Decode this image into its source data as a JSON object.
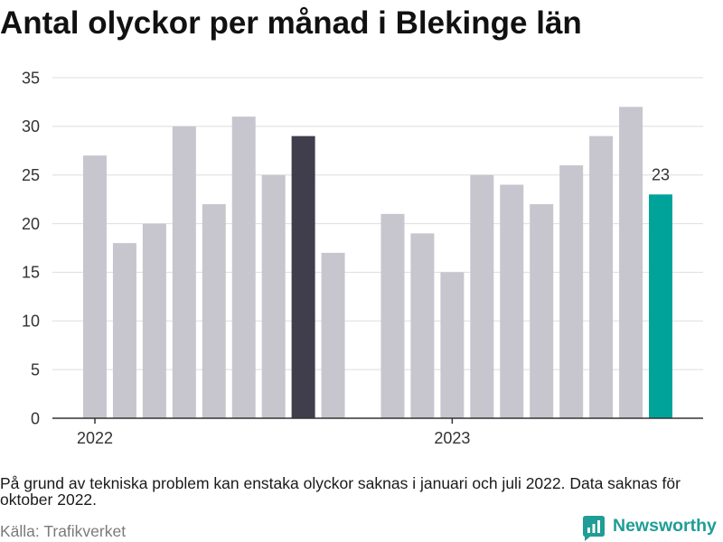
{
  "chart_data": {
    "type": "bar",
    "title": "Antal olyckor per månad i Blekinge län",
    "x": [
      "2022-01",
      "2022-02",
      "2022-03",
      "2022-04",
      "2022-05",
      "2022-06",
      "2022-07",
      "2022-08",
      "2022-09",
      "2022-10",
      "2022-11",
      "2022-12",
      "2023-01",
      "2023-02",
      "2023-03",
      "2023-04",
      "2023-05",
      "2023-06",
      "2023-07",
      "2023-08"
    ],
    "values": [
      27,
      18,
      20,
      30,
      22,
      31,
      25,
      29,
      17,
      null,
      21,
      19,
      15,
      25,
      24,
      22,
      26,
      29,
      32,
      23
    ],
    "x_ticks": [
      "2022",
      "2023"
    ],
    "y_ticks": [
      0,
      5,
      10,
      15,
      20,
      25,
      30,
      35
    ],
    "ylim": [
      0,
      35
    ],
    "grid": "horizontal",
    "legend": "none",
    "data_labels": [
      {
        "x": "2023-08",
        "text": "23"
      }
    ],
    "colors": {
      "bar": "#c7c6ce",
      "grid": "#dedede",
      "axis": "#333333",
      "label": "#333333"
    },
    "highlights": [
      {
        "x": "2022-08",
        "color": "#403e4c"
      },
      {
        "x": "2023-08",
        "color": "#00a39a"
      }
    ]
  },
  "footer": {
    "note": "På grund av tekniska problem kan enstaka olyckor saknas i januari och juli 2022. Data saknas för oktober 2022.",
    "source": "Källa: Trafikverket"
  },
  "brand": {
    "name": "Newsworthy",
    "icon": "newsworthy-logo-icon",
    "color": "#1f9d96"
  }
}
